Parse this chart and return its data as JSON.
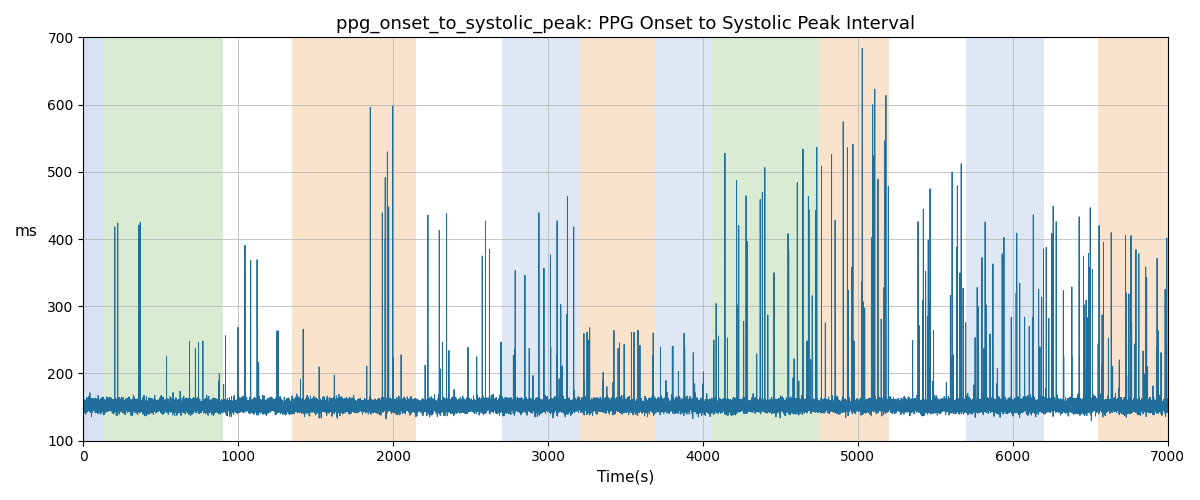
{
  "title": "ppg_onset_to_systolic_peak: PPG Onset to Systolic Peak Interval",
  "xlabel": "Time(s)",
  "ylabel": "ms",
  "xlim": [
    0,
    7000
  ],
  "ylim": [
    100,
    700
  ],
  "line_color": "#1f6e9c",
  "line_width": 0.7,
  "background_color": "#ffffff",
  "grid_color": "#b0b0b0",
  "bg_bands": [
    {
      "xmin": 0,
      "xmax": 130,
      "color": "#aec6e8",
      "alpha": 0.5
    },
    {
      "xmin": 130,
      "xmax": 900,
      "color": "#b5d9a8",
      "alpha": 0.5
    },
    {
      "xmin": 900,
      "xmax": 1350,
      "color": "#ffffff",
      "alpha": 0.0
    },
    {
      "xmin": 1350,
      "xmax": 2150,
      "color": "#f5c99a",
      "alpha": 0.5
    },
    {
      "xmin": 2150,
      "xmax": 2700,
      "color": "#ffffff",
      "alpha": 0.0
    },
    {
      "xmin": 2700,
      "xmax": 3200,
      "color": "#aec6e8",
      "alpha": 0.4
    },
    {
      "xmin": 3200,
      "xmax": 3700,
      "color": "#f5c99a",
      "alpha": 0.5
    },
    {
      "xmin": 3700,
      "xmax": 4050,
      "color": "#aec6e8",
      "alpha": 0.4
    },
    {
      "xmin": 4050,
      "xmax": 4750,
      "color": "#b5d9a8",
      "alpha": 0.5
    },
    {
      "xmin": 4750,
      "xmax": 5200,
      "color": "#f5c99a",
      "alpha": 0.5
    },
    {
      "xmin": 5200,
      "xmax": 5700,
      "color": "#ffffff",
      "alpha": 0.0
    },
    {
      "xmin": 5700,
      "xmax": 6200,
      "color": "#aec6e8",
      "alpha": 0.4
    },
    {
      "xmin": 6200,
      "xmax": 6550,
      "color": "#ffffff",
      "alpha": 0.0
    },
    {
      "xmin": 6550,
      "xmax": 7000,
      "color": "#f5c99a",
      "alpha": 0.5
    }
  ],
  "seed": 42,
  "n_points": 35000,
  "base_value": 152,
  "noise_std": 5,
  "spike_regions": [
    {
      "t0": 200,
      "t1": 250,
      "prob": 1.0,
      "vmin": 415,
      "vmax": 425,
      "n_spikes": 2
    },
    {
      "t0": 350,
      "t1": 420,
      "prob": 1.0,
      "vmin": 415,
      "vmax": 425,
      "n_spikes": 2
    },
    {
      "t0": 1000,
      "t1": 1150,
      "prob": 1.0,
      "vmin": 360,
      "vmax": 420,
      "n_spikes": 3
    },
    {
      "t0": 1800,
      "t1": 2000,
      "prob": 1.0,
      "vmin": 340,
      "vmax": 600,
      "n_spikes": 8
    },
    {
      "t0": 2200,
      "t1": 2800,
      "prob": 1.0,
      "vmin": 170,
      "vmax": 440,
      "n_spikes": 12
    },
    {
      "t0": 2850,
      "t1": 3200,
      "prob": 1.0,
      "vmin": 170,
      "vmax": 530,
      "n_spikes": 15
    },
    {
      "t0": 3200,
      "t1": 3700,
      "prob": 1.0,
      "vmin": 160,
      "vmax": 265,
      "n_spikes": 20
    },
    {
      "t0": 3700,
      "t1": 4100,
      "prob": 1.0,
      "vmin": 160,
      "vmax": 270,
      "n_spikes": 15
    },
    {
      "t0": 4050,
      "t1": 4750,
      "prob": 1.0,
      "vmin": 170,
      "vmax": 540,
      "n_spikes": 30
    },
    {
      "t0": 4750,
      "t1": 5200,
      "prob": 1.0,
      "vmin": 160,
      "vmax": 635,
      "n_spikes": 20
    },
    {
      "t0": 5000,
      "t1": 5200,
      "prob": 1.0,
      "vmin": 500,
      "vmax": 690,
      "n_spikes": 3
    },
    {
      "t0": 5350,
      "t1": 5700,
      "prob": 1.0,
      "vmin": 180,
      "vmax": 530,
      "n_spikes": 20
    },
    {
      "t0": 5700,
      "t1": 6200,
      "prob": 1.0,
      "vmin": 160,
      "vmax": 440,
      "n_spikes": 25
    },
    {
      "t0": 6200,
      "t1": 6600,
      "prob": 1.0,
      "vmin": 160,
      "vmax": 450,
      "n_spikes": 25
    },
    {
      "t0": 6550,
      "t1": 7000,
      "prob": 1.0,
      "vmin": 160,
      "vmax": 440,
      "n_spikes": 25
    }
  ]
}
